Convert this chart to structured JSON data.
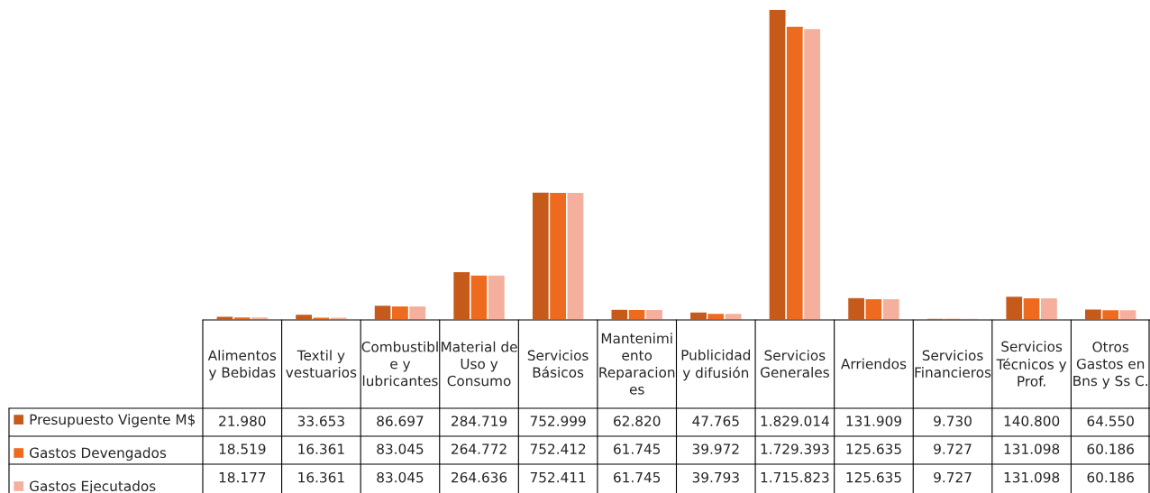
{
  "chart_data": {
    "type": "bar",
    "categories": [
      "Alimentos\ny Bebidas",
      "Textil y\nvestuarios",
      "Combustibl\ne y\nlubricantes",
      "Material de\nUso y\nConsumo",
      "Servicios\nBásicos",
      "Mantenimi\nento\nReparacion\nes",
      "Publicidad\ny difusión",
      "Servicios\nGenerales",
      "Arriendos",
      "Servicios\nFinancieros",
      "Servicios\nTécnicos y\nProf.",
      "Otros\nGastos en\nBns y Ss C."
    ],
    "series": [
      {
        "name": "Presupuesto Vigente M$",
        "color": "#c55a1b",
        "values": [
          21980,
          33653,
          86697,
          284719,
          752999,
          62820,
          47765,
          1829014,
          131909,
          9730,
          140800,
          64550
        ],
        "value_labels": [
          "21.980",
          "33.653",
          "86.697",
          "284.719",
          "752.999",
          "62.820",
          "47.765",
          "1.829.014",
          "131.909",
          "9.730",
          "140.800",
          "64.550"
        ]
      },
      {
        "name": "Gastos Devengados",
        "color": "#ee6a1f",
        "values": [
          18519,
          16361,
          83045,
          264772,
          752412,
          61745,
          39972,
          1729393,
          125635,
          9727,
          131098,
          60186
        ],
        "value_labels": [
          "18.519",
          "16.361",
          "83.045",
          "264.772",
          "752.412",
          "61.745",
          "39.972",
          "1.729.393",
          "125.635",
          "9.727",
          "131.098",
          "60.186"
        ]
      },
      {
        "name": "Gastos Ejecutados",
        "color": "#f4b09c",
        "values": [
          18177,
          16361,
          83045,
          264636,
          752411,
          61745,
          39793,
          1715823,
          125635,
          9727,
          131098,
          60186
        ],
        "value_labels": [
          "18.177",
          "16.361",
          "83.045",
          "264.636",
          "752.411",
          "61.745",
          "39.793",
          "1.715.823",
          "125.635",
          "9.727",
          "131.098",
          "60.186"
        ]
      }
    ],
    "legend": "bottom",
    "grid": false,
    "tick_labels": "x"
  }
}
